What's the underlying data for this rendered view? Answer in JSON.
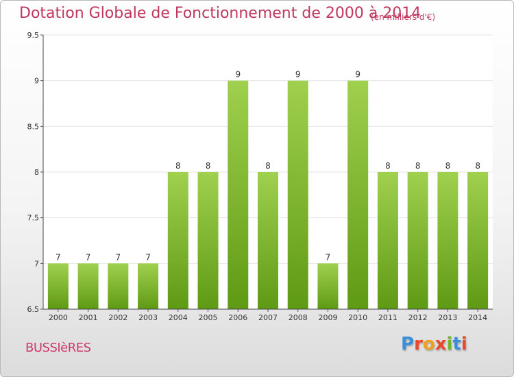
{
  "header": {
    "title": "Dotation Globale de Fonctionnement de 2000 à 2014",
    "unit": "(en milliers d'€)"
  },
  "footer": {
    "commune": "BUSSIèRES",
    "logo": "Proxiti",
    "logo_colors": [
      "#3a8fd8",
      "#e8482b",
      "#f0a020",
      "#e8482b",
      "#72b52e",
      "#3a8fd8",
      "#e8482b"
    ]
  },
  "chart_data": {
    "type": "bar",
    "title": "Dotation Globale de Fonctionnement de 2000 à 2014",
    "subtitle": "(en milliers d'€)",
    "xlabel": "",
    "ylabel": "",
    "categories": [
      "2000",
      "2001",
      "2002",
      "2003",
      "2004",
      "2005",
      "2006",
      "2007",
      "2008",
      "2009",
      "2010",
      "2011",
      "2012",
      "2013",
      "2014"
    ],
    "values": [
      7,
      7,
      7,
      7,
      8,
      8,
      9,
      8,
      9,
      7,
      9,
      8,
      8,
      8,
      8
    ],
    "data_labels": [
      "7",
      "7",
      "7",
      "7",
      "8",
      "8",
      "9",
      "8",
      "9",
      "7",
      "9",
      "8",
      "8",
      "8",
      "8"
    ],
    "ylim": [
      6.5,
      9.5
    ],
    "yticks": [
      6.5,
      7,
      7.5,
      8,
      8.5,
      9,
      9.5
    ],
    "ytick_labels": [
      "6.5",
      "7",
      "7.5",
      "8",
      "8.5",
      "9",
      "9.5"
    ],
    "grid": true,
    "bar_color_top": "#9fd04e",
    "bar_color_bottom": "#5f9a14",
    "grid_color": "#e6e6e6"
  }
}
